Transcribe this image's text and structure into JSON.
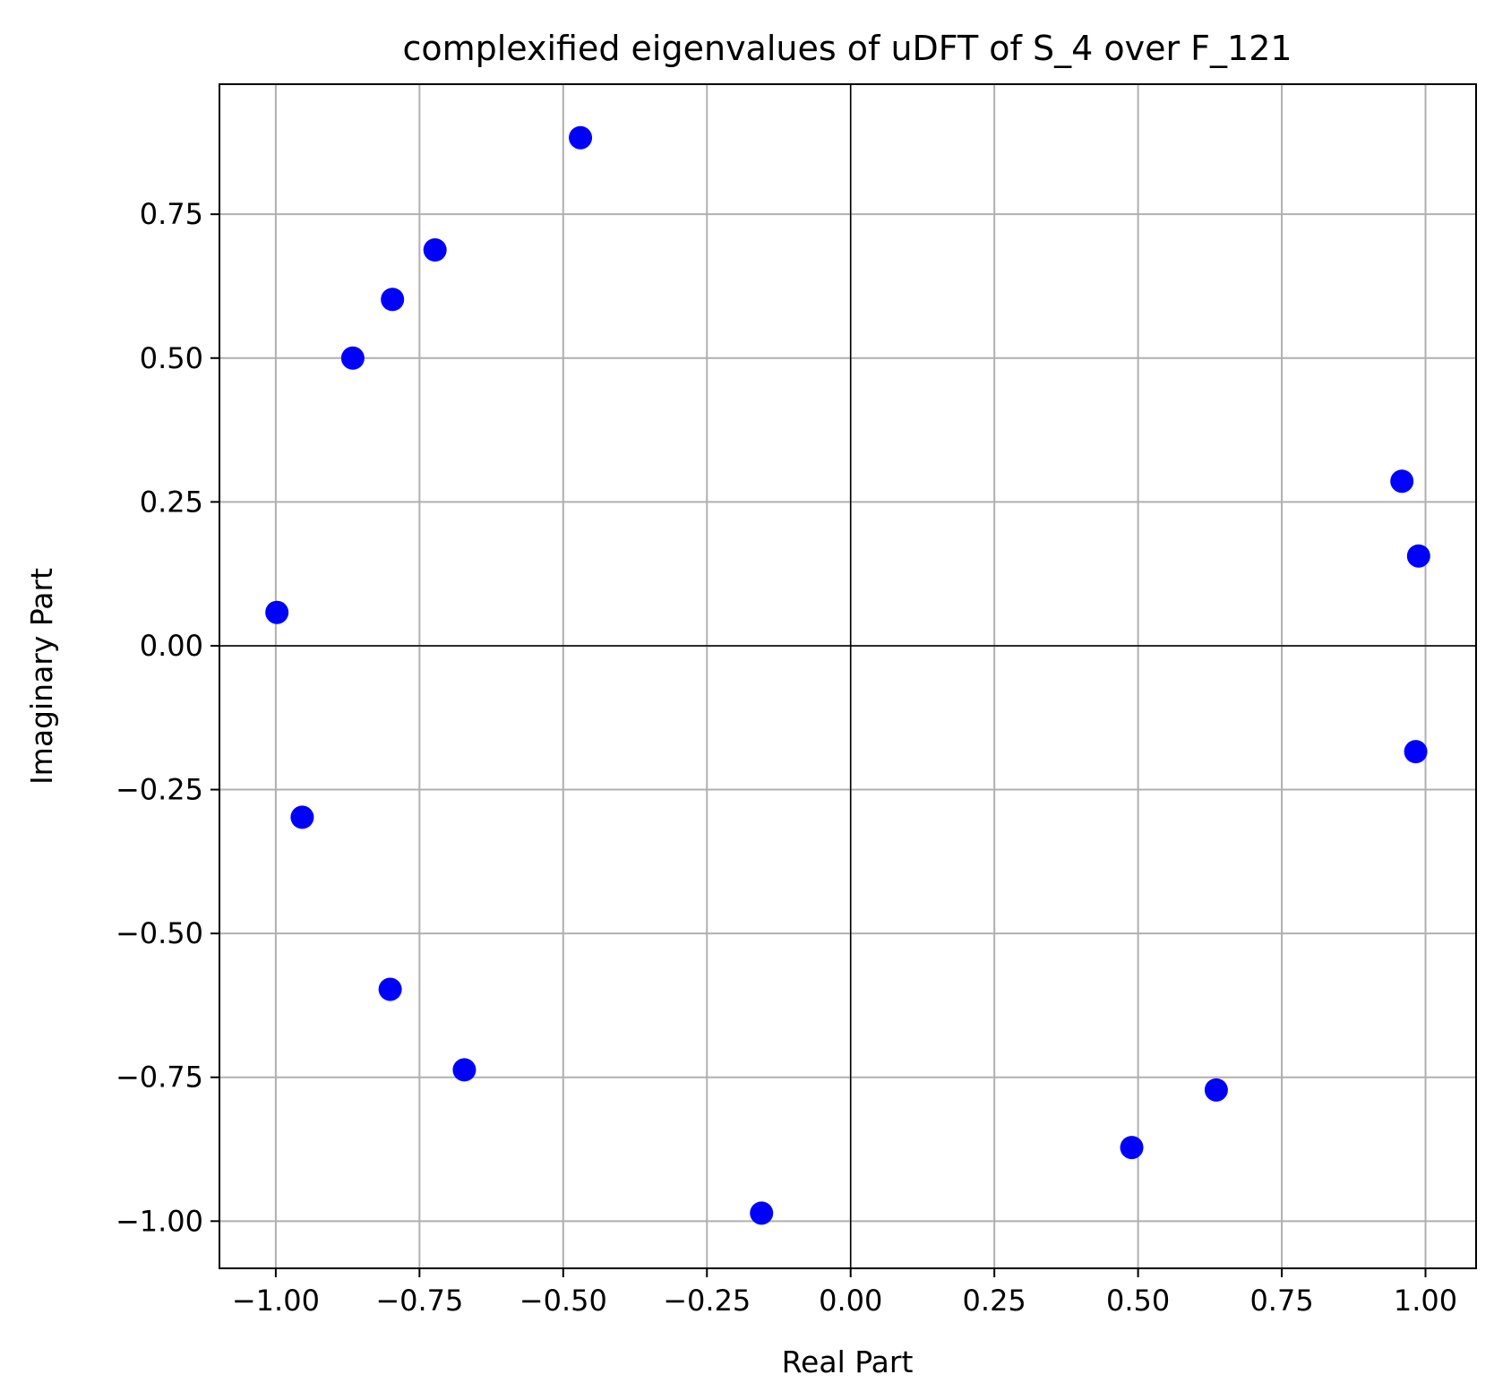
{
  "chart_data": {
    "type": "scatter",
    "title": "complexified eigenvalues of uDFT of S_4 over F_121",
    "xlabel": "Real Part",
    "ylabel": "Imaginary Part",
    "xlim": [
      -1.098,
      1.088
    ],
    "ylim": [
      -1.082,
      0.976
    ],
    "grid": true,
    "reference_lines": {
      "x": 0,
      "y": 0
    },
    "xticks": [
      -1.0,
      -0.75,
      -0.5,
      -0.25,
      0.0,
      0.25,
      0.5,
      0.75,
      1.0
    ],
    "xtick_labels": [
      "−1.00",
      "−0.75",
      "−0.50",
      "−0.25",
      "0.00",
      "0.25",
      "0.50",
      "0.75",
      "1.00"
    ],
    "yticks": [
      0.75,
      0.5,
      0.25,
      0.0,
      -0.25,
      -0.5,
      -0.75,
      -1.0
    ],
    "ytick_labels": [
      "0.75",
      "0.50",
      "0.25",
      "0.00",
      "−0.25",
      "−0.50",
      "−0.75",
      "−1.00"
    ],
    "marker_color": "#0000ff",
    "series": [
      {
        "points": [
          {
            "x": -0.47,
            "y": 0.883
          },
          {
            "x": -0.723,
            "y": 0.688
          },
          {
            "x": -0.797,
            "y": 0.602
          },
          {
            "x": -0.866,
            "y": 0.5
          },
          {
            "x": -0.998,
            "y": 0.058
          },
          {
            "x": -0.954,
            "y": -0.298
          },
          {
            "x": -0.801,
            "y": -0.597
          },
          {
            "x": -0.672,
            "y": -0.737
          },
          {
            "x": -0.155,
            "y": -0.986
          },
          {
            "x": 0.489,
            "y": -0.872
          },
          {
            "x": 0.636,
            "y": -0.772
          },
          {
            "x": 0.959,
            "y": 0.286
          },
          {
            "x": 0.988,
            "y": 0.156
          },
          {
            "x": 0.983,
            "y": -0.184
          }
        ]
      }
    ]
  }
}
